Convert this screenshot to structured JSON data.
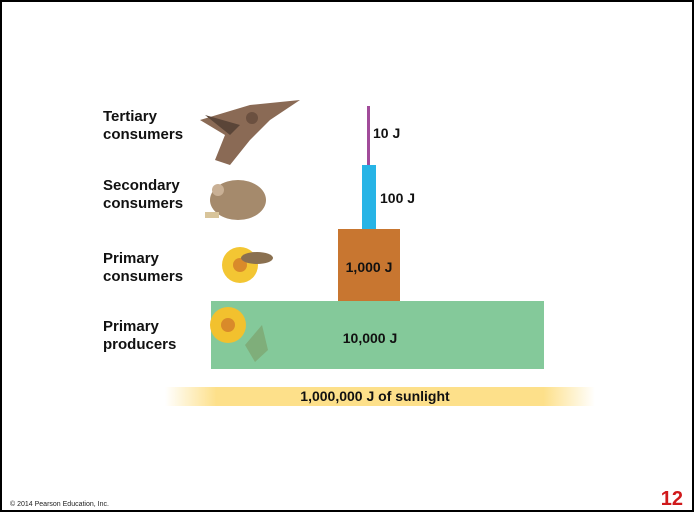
{
  "levels": [
    {
      "label": [
        "Tertiary",
        "consumers"
      ],
      "energy": "10 J"
    },
    {
      "label": [
        "Secondary",
        "consumers"
      ],
      "energy": "100 J"
    },
    {
      "label": [
        "Primary",
        "consumers"
      ],
      "energy": "1,000 J"
    },
    {
      "label": [
        "Primary",
        "producers"
      ],
      "energy": "10,000 J"
    }
  ],
  "sunlight": "1,000,000 J of sunlight",
  "footer": {
    "copyright": "© 2014 Pearson Education, Inc.",
    "slide_number": "12"
  }
}
